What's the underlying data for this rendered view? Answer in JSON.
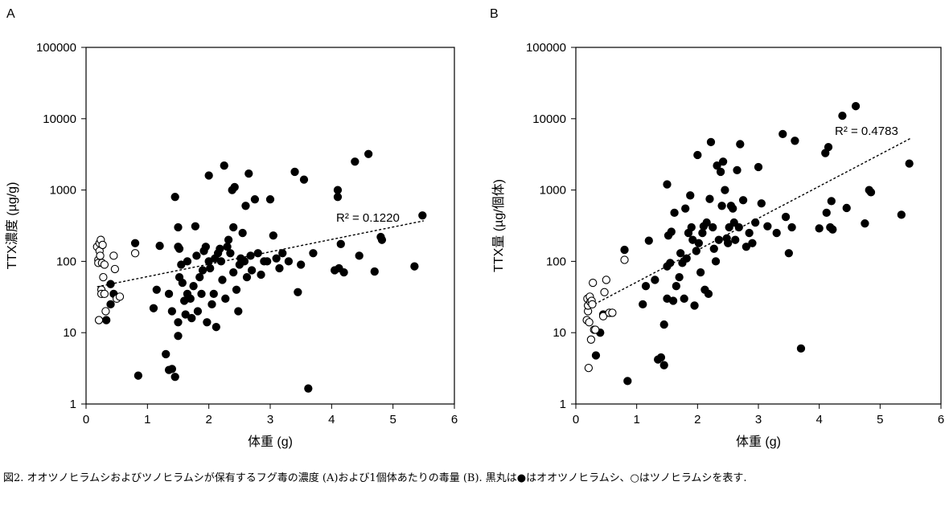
{
  "figure": {
    "caption": "図2. オオツノヒラムシおよびツノヒラムシが保有するフグ毒の濃度 (A)および1個体あたりの毒量 (B). 黒丸は●はオオツノヒラムシ、○はツノヒラムシを表す."
  },
  "chart_data": [
    {
      "type": "scatter",
      "panel_label": "A",
      "xlabel": "体重 (g)",
      "ylabel": "TTX濃度 (µg/g)",
      "xlim": [
        0,
        6
      ],
      "ylim": [
        1,
        100000
      ],
      "y_scale": "log",
      "x_ticks": [
        "0",
        "1",
        "2",
        "3",
        "4",
        "5",
        "6"
      ],
      "y_ticks": [
        "1",
        "10",
        "100",
        "1000",
        "10000",
        "100000"
      ],
      "annotation": "R² = 0.1220",
      "trendline": {
        "x": [
          0.18,
          5.5
        ],
        "y": [
          44,
          370
        ]
      },
      "series": [
        {
          "style": "filled",
          "points": [
            [
              0.33,
              15
            ],
            [
              0.4,
              48
            ],
            [
              0.4,
              25
            ],
            [
              0.45,
              35
            ],
            [
              0.8,
              180
            ],
            [
              0.85,
              2.5
            ],
            [
              1.1,
              22
            ],
            [
              1.15,
              40
            ],
            [
              1.2,
              165
            ],
            [
              1.3,
              5
            ],
            [
              1.35,
              3
            ],
            [
              1.35,
              35
            ],
            [
              1.4,
              3.1
            ],
            [
              1.4,
              20
            ],
            [
              1.45,
              2.4
            ],
            [
              1.45,
              800
            ],
            [
              1.5,
              300
            ],
            [
              1.5,
              9
            ],
            [
              1.5,
              14
            ],
            [
              1.5,
              160
            ],
            [
              1.52,
              150
            ],
            [
              1.52,
              60
            ],
            [
              1.55,
              90
            ],
            [
              1.57,
              50
            ],
            [
              1.6,
              28
            ],
            [
              1.62,
              18
            ],
            [
              1.65,
              100
            ],
            [
              1.65,
              35
            ],
            [
              1.7,
              30
            ],
            [
              1.72,
              16
            ],
            [
              1.75,
              45
            ],
            [
              1.78,
              310
            ],
            [
              1.8,
              120
            ],
            [
              1.82,
              20
            ],
            [
              1.85,
              60
            ],
            [
              1.88,
              35
            ],
            [
              1.9,
              75
            ],
            [
              1.92,
              140
            ],
            [
              1.95,
              160
            ],
            [
              1.97,
              14
            ],
            [
              2.0,
              100
            ],
            [
              2.0,
              1600
            ],
            [
              2.02,
              80
            ],
            [
              2.05,
              25
            ],
            [
              2.08,
              35
            ],
            [
              2.1,
              110
            ],
            [
              2.12,
              12
            ],
            [
              2.15,
              130
            ],
            [
              2.18,
              150
            ],
            [
              2.2,
              100
            ],
            [
              2.22,
              55
            ],
            [
              2.25,
              2200
            ],
            [
              2.27,
              30
            ],
            [
              2.3,
              160
            ],
            [
              2.32,
              200
            ],
            [
              2.35,
              130
            ],
            [
              2.38,
              1000
            ],
            [
              2.4,
              70
            ],
            [
              2.4,
              300
            ],
            [
              2.42,
              1100
            ],
            [
              2.45,
              40
            ],
            [
              2.48,
              20
            ],
            [
              2.5,
              90
            ],
            [
              2.52,
              110
            ],
            [
              2.55,
              250
            ],
            [
              2.58,
              100
            ],
            [
              2.6,
              600
            ],
            [
              2.62,
              60
            ],
            [
              2.65,
              1700
            ],
            [
              2.68,
              120
            ],
            [
              2.7,
              75
            ],
            [
              2.75,
              740
            ],
            [
              2.8,
              130
            ],
            [
              2.85,
              65
            ],
            [
              2.9,
              100
            ],
            [
              2.95,
              100
            ],
            [
              3.0,
              740
            ],
            [
              3.05,
              230
            ],
            [
              3.1,
              110
            ],
            [
              3.15,
              80
            ],
            [
              3.2,
              130
            ],
            [
              3.3,
              100
            ],
            [
              3.4,
              1800
            ],
            [
              3.45,
              37
            ],
            [
              3.5,
              90
            ],
            [
              3.55,
              1400
            ],
            [
              3.62,
              1.65
            ],
            [
              3.7,
              130
            ],
            [
              4.05,
              75
            ],
            [
              4.1,
              800
            ],
            [
              4.1,
              1000
            ],
            [
              4.12,
              80
            ],
            [
              4.15,
              175
            ],
            [
              4.2,
              70
            ],
            [
              4.38,
              2500
            ],
            [
              4.45,
              120
            ],
            [
              4.6,
              3200
            ],
            [
              4.7,
              72
            ],
            [
              4.8,
              220
            ],
            [
              4.82,
              200
            ],
            [
              5.35,
              85
            ],
            [
              5.48,
              440
            ]
          ]
        },
        {
          "style": "open",
          "points": [
            [
              0.18,
              160
            ],
            [
              0.2,
              105
            ],
            [
              0.2,
              95
            ],
            [
              0.21,
              15
            ],
            [
              0.22,
              180
            ],
            [
              0.22,
              140
            ],
            [
              0.23,
              120
            ],
            [
              0.24,
              200
            ],
            [
              0.25,
              40
            ],
            [
              0.25,
              35
            ],
            [
              0.26,
              95
            ],
            [
              0.27,
              170
            ],
            [
              0.28,
              60
            ],
            [
              0.3,
              90
            ],
            [
              0.3,
              35
            ],
            [
              0.32,
              20
            ],
            [
              0.45,
              120
            ],
            [
              0.47,
              78
            ],
            [
              0.5,
              30
            ],
            [
              0.55,
              32
            ],
            [
              0.8,
              130
            ]
          ]
        }
      ]
    },
    {
      "type": "scatter",
      "panel_label": "B",
      "xlabel": "体重 (g)",
      "ylabel": "TTX量 (µg/個体)",
      "xlim": [
        0,
        6
      ],
      "ylim": [
        1,
        100000
      ],
      "y_scale": "log",
      "x_ticks": [
        "0",
        "1",
        "2",
        "3",
        "4",
        "5",
        "6"
      ],
      "y_ticks": [
        "1",
        "10",
        "100",
        "1000",
        "10000",
        "100000"
      ],
      "annotation": "R² = 0.4783",
      "trendline": {
        "x": [
          0.18,
          5.5
        ],
        "y": [
          22,
          5300
        ]
      },
      "series": [
        {
          "style": "filled",
          "points": [
            [
              0.33,
              4.8
            ],
            [
              0.4,
              10
            ],
            [
              0.45,
              18
            ],
            [
              0.8,
              145
            ],
            [
              0.85,
              2.1
            ],
            [
              1.1,
              25
            ],
            [
              1.15,
              45
            ],
            [
              1.2,
              195
            ],
            [
              1.3,
              55
            ],
            [
              1.35,
              4.2
            ],
            [
              1.4,
              4.5
            ],
            [
              1.45,
              3.5
            ],
            [
              1.45,
              13
            ],
            [
              1.5,
              1200
            ],
            [
              1.5,
              85
            ],
            [
              1.5,
              30
            ],
            [
              1.52,
              230
            ],
            [
              1.55,
              95
            ],
            [
              1.57,
              260
            ],
            [
              1.6,
              28
            ],
            [
              1.62,
              480
            ],
            [
              1.65,
              45
            ],
            [
              1.7,
              60
            ],
            [
              1.72,
              130
            ],
            [
              1.75,
              95
            ],
            [
              1.78,
              30
            ],
            [
              1.8,
              550
            ],
            [
              1.82,
              110
            ],
            [
              1.85,
              250
            ],
            [
              1.88,
              840
            ],
            [
              1.9,
              300
            ],
            [
              1.92,
              200
            ],
            [
              1.95,
              24
            ],
            [
              1.98,
              140
            ],
            [
              2.0,
              3100
            ],
            [
              2.02,
              180
            ],
            [
              2.05,
              70
            ],
            [
              2.08,
              250
            ],
            [
              2.1,
              310
            ],
            [
              2.12,
              40
            ],
            [
              2.15,
              350
            ],
            [
              2.18,
              35
            ],
            [
              2.2,
              750
            ],
            [
              2.22,
              4700
            ],
            [
              2.25,
              300
            ],
            [
              2.27,
              150
            ],
            [
              2.3,
              100
            ],
            [
              2.32,
              2200
            ],
            [
              2.35,
              200
            ],
            [
              2.38,
              1800
            ],
            [
              2.4,
              600
            ],
            [
              2.42,
              2500
            ],
            [
              2.45,
              1000
            ],
            [
              2.48,
              210
            ],
            [
              2.5,
              180
            ],
            [
              2.52,
              300
            ],
            [
              2.55,
              600
            ],
            [
              2.58,
              550
            ],
            [
              2.6,
              350
            ],
            [
              2.62,
              200
            ],
            [
              2.65,
              1900
            ],
            [
              2.68,
              300
            ],
            [
              2.7,
              4400
            ],
            [
              2.75,
              720
            ],
            [
              2.8,
              160
            ],
            [
              2.85,
              250
            ],
            [
              2.9,
              180
            ],
            [
              2.95,
              350
            ],
            [
              3.0,
              2100
            ],
            [
              3.05,
              650
            ],
            [
              3.15,
              310
            ],
            [
              3.3,
              250
            ],
            [
              3.4,
              6100
            ],
            [
              3.45,
              420
            ],
            [
              3.5,
              130
            ],
            [
              3.55,
              300
            ],
            [
              3.6,
              4900
            ],
            [
              3.7,
              6
            ],
            [
              4.0,
              290
            ],
            [
              4.1,
              3300
            ],
            [
              4.12,
              480
            ],
            [
              4.15,
              4000
            ],
            [
              4.18,
              300
            ],
            [
              4.2,
              700
            ],
            [
              4.22,
              280
            ],
            [
              4.38,
              11000
            ],
            [
              4.45,
              560
            ],
            [
              4.6,
              15000
            ],
            [
              4.75,
              340
            ],
            [
              4.82,
              1000
            ],
            [
              4.85,
              930
            ],
            [
              5.35,
              450
            ],
            [
              5.48,
              2350
            ]
          ]
        },
        {
          "style": "open",
          "points": [
            [
              0.18,
              15
            ],
            [
              0.19,
              30
            ],
            [
              0.2,
              20
            ],
            [
              0.2,
              24
            ],
            [
              0.21,
              3.2
            ],
            [
              0.22,
              14
            ],
            [
              0.23,
              32
            ],
            [
              0.24,
              27
            ],
            [
              0.25,
              8
            ],
            [
              0.26,
              28
            ],
            [
              0.27,
              25
            ],
            [
              0.28,
              50
            ],
            [
              0.3,
              11
            ],
            [
              0.32,
              11
            ],
            [
              0.45,
              17
            ],
            [
              0.47,
              37
            ],
            [
              0.5,
              55
            ],
            [
              0.55,
              19
            ],
            [
              0.6,
              19
            ],
            [
              0.8,
              105
            ]
          ]
        }
      ]
    }
  ]
}
